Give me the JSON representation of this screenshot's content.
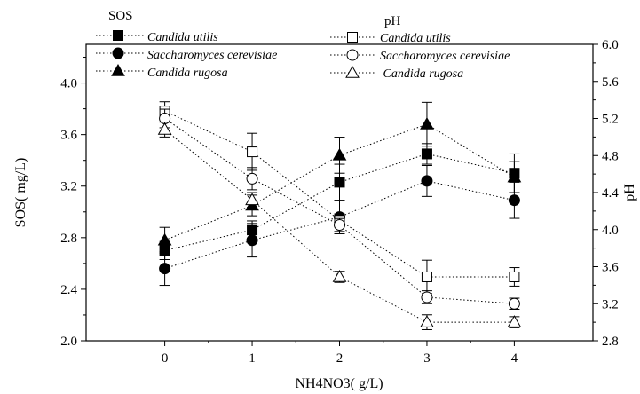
{
  "chart_data": {
    "type": "line",
    "xlabel": "NH4NO3(  g/L)",
    "ylabel": "SOS(  mg/L)",
    "y2label": "pH",
    "x": [
      0,
      1,
      2,
      3,
      4
    ],
    "x_ticks": [
      "0",
      "1",
      "2",
      "3",
      "4"
    ],
    "xlim": [
      -0.9,
      4.9
    ],
    "ylim": [
      2.0,
      4.3
    ],
    "y_ticks": [
      "2.0",
      "2.4",
      "2.8",
      "3.2",
      "3.6",
      "4.0"
    ],
    "y2lim": [
      2.8,
      6.0
    ],
    "y2_ticks": [
      "2.8",
      "3.2",
      "3.6",
      "4.0",
      "4.4",
      "4.8",
      "5.2",
      "5.6",
      "6.0"
    ],
    "grid": false,
    "legend_groups": [
      {
        "header": "SOS",
        "placement": "top-left"
      },
      {
        "header": "pH",
        "placement": "top-center"
      }
    ],
    "series": [
      {
        "name": "Candida utilis",
        "group": "SOS",
        "axis": "left",
        "marker": "square",
        "filled": true,
        "y": [
          2.7,
          2.86,
          3.23,
          3.45,
          3.3
        ],
        "err": [
          0.07,
          0.07,
          0.14,
          0.08,
          0.15
        ]
      },
      {
        "name": "Saccharomyces cerevisiae",
        "group": "SOS",
        "axis": "left",
        "marker": "circle",
        "filled": true,
        "y": [
          2.56,
          2.78,
          2.96,
          3.24,
          3.09
        ],
        "err": [
          0.13,
          0.13,
          0.13,
          0.12,
          0.14
        ]
      },
      {
        "name": "Candida rugosa",
        "group": "SOS",
        "axis": "left",
        "marker": "triangle",
        "filled": true,
        "y": [
          2.78,
          3.05,
          3.44,
          3.68,
          3.27
        ],
        "err": [
          0.1,
          0.08,
          0.14,
          0.17,
          0.12
        ]
      },
      {
        "name": "Candida utilis",
        "group": "pH",
        "axis": "right",
        "marker": "square",
        "filled": false,
        "y": [
          5.28,
          4.84,
          4.1,
          3.49,
          3.49
        ],
        "err": [
          0.1,
          0.2,
          0.07,
          0.18,
          0.1
        ]
      },
      {
        "name": "Saccharomyces cerevisiae",
        "group": "pH",
        "axis": "right",
        "marker": "circle",
        "filled": false,
        "y": [
          5.2,
          4.55,
          4.05,
          3.27,
          3.2
        ],
        "err": [
          0.1,
          0.12,
          0.07,
          0.07,
          0.06
        ]
      },
      {
        "name": "Candida rugosa",
        "group": "pH",
        "axis": "right",
        "marker": "triangle",
        "filled": false,
        "y": [
          5.08,
          4.32,
          3.49,
          3.0,
          3.0
        ],
        "err": [
          0.08,
          0.08,
          0.06,
          0.08,
          0.06
        ]
      }
    ]
  },
  "legend_display": {
    "sos_header": "SOS",
    "ph_header": "pH",
    "ph_label_3": " Candida rugosa"
  },
  "colors": {
    "ink": "#000000",
    "background": "#ffffff"
  }
}
